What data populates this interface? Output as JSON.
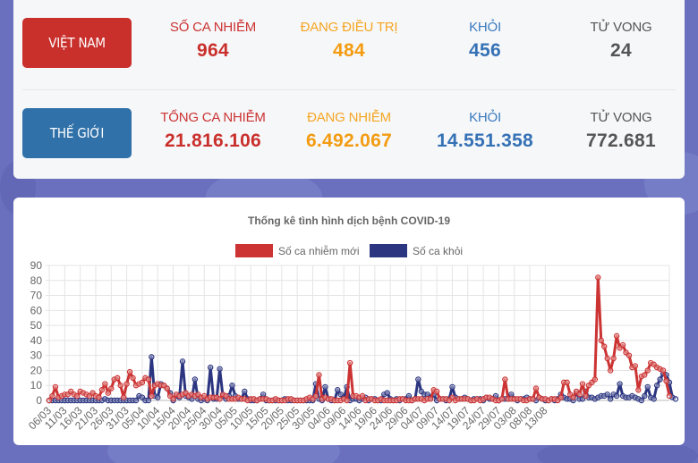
{
  "colors": {
    "vn_red": "#c9302c",
    "world_blue": "#3071a9",
    "infected": "#cc3333",
    "treating": "#f5a623",
    "recovered": "#3a7bbf",
    "deaths": "#555555",
    "series_new_cases": "#cc3333",
    "series_recovered": "#2b3580"
  },
  "vietnam": {
    "button_label": "VIỆT NAM",
    "stats": [
      {
        "label": "SỐ CA NHIỄM",
        "value": "964"
      },
      {
        "label": "ĐANG ĐIỀU TRỊ",
        "value": "484"
      },
      {
        "label": "KHỎI",
        "value": "456"
      },
      {
        "label": "TỬ VONG",
        "value": "24"
      }
    ]
  },
  "world": {
    "button_label": "THẾ GIỚI",
    "stats": [
      {
        "label": "TỔNG CA NHIỄM",
        "value": "21.816.106"
      },
      {
        "label": "ĐANG NHIỄM",
        "value": "6.492.067"
      },
      {
        "label": "KHỎI",
        "value": "14.551.358"
      },
      {
        "label": "TỬ VONG",
        "value": "772.681"
      }
    ]
  },
  "chart_data": {
    "type": "line",
    "title": "Thống kê tình hình dịch bệnh COVID-19",
    "legend_position": "top",
    "xlabel": "",
    "ylabel": "",
    "ylim": [
      0,
      90
    ],
    "yticks": [
      0,
      10,
      20,
      30,
      40,
      50,
      60,
      70,
      80,
      90
    ],
    "grid": true,
    "x_start": "06/03",
    "x_end": "15/08",
    "x_tick_labels": [
      "06/03",
      "11/03",
      "16/03",
      "21/03",
      "26/03",
      "31/03",
      "05/04",
      "10/04",
      "15/04",
      "20/04",
      "25/04",
      "30/04",
      "05/05",
      "10/05",
      "15/05",
      "20/05",
      "25/05",
      "30/05",
      "04/06",
      "09/06",
      "14/06",
      "19/06",
      "24/06",
      "29/06",
      "04/07",
      "09/07",
      "14/07",
      "19/07",
      "24/07",
      "29/07",
      "03/08",
      "08/08",
      "13/08"
    ],
    "series": [
      {
        "name": "Số ca nhiễm mới",
        "color": "#cc3333",
        "values": [
          0,
          3,
          9,
          2,
          3,
          4,
          4,
          6,
          4,
          3,
          6,
          5,
          4,
          3,
          5,
          3,
          2,
          7,
          11,
          5,
          8,
          14,
          15,
          10,
          2,
          11,
          19,
          15,
          10,
          11,
          12,
          15,
          14,
          3,
          10,
          11,
          10,
          10,
          8,
          3,
          1,
          4,
          3,
          4,
          5,
          3,
          4,
          3,
          4,
          2,
          3,
          1,
          2,
          2,
          2,
          1,
          4,
          3,
          1,
          1,
          1,
          2,
          1,
          1,
          0,
          1,
          1,
          0,
          1,
          1,
          1,
          0,
          0,
          1,
          0,
          0,
          0,
          1,
          1,
          0,
          0,
          0,
          0,
          1,
          2,
          1,
          3,
          17,
          1,
          2,
          1,
          1,
          0,
          0,
          0,
          1,
          0,
          25,
          3,
          3,
          2,
          3,
          0,
          1,
          1,
          0,
          0,
          1,
          0,
          0,
          0,
          0,
          0,
          1,
          1,
          0,
          0,
          0,
          1,
          1,
          1,
          0,
          1,
          1,
          7,
          6,
          1,
          1,
          1,
          0,
          2,
          0,
          1,
          1,
          1,
          1,
          0,
          0,
          1,
          0,
          1,
          2,
          2,
          1,
          0,
          0,
          1,
          14,
          1,
          1,
          1,
          1,
          1,
          0,
          0,
          1,
          1,
          8,
          2,
          1,
          1,
          0,
          1,
          1,
          0,
          2,
          12,
          12,
          4,
          2,
          6,
          4,
          11,
          3,
          10,
          12,
          14,
          82,
          40,
          36,
          28,
          20,
          28,
          43,
          35,
          37,
          32,
          30,
          22,
          23,
          7,
          16,
          17,
          20,
          25,
          24,
          22,
          21,
          20,
          13,
          3
        ]
      },
      {
        "name": "Số ca khỏi",
        "color": "#2b3580",
        "values": [
          0,
          0,
          0,
          0,
          0,
          0,
          0,
          0,
          0,
          0,
          0,
          0,
          0,
          0,
          0,
          0,
          0,
          0,
          1,
          0,
          0,
          0,
          0,
          0,
          0,
          0,
          0,
          0,
          0,
          3,
          2,
          0,
          0,
          29,
          3,
          2,
          11,
          10,
          8,
          5,
          0,
          3,
          2,
          26,
          3,
          2,
          1,
          14,
          1,
          0,
          1,
          0,
          22,
          1,
          1,
          21,
          3,
          1,
          3,
          10,
          3,
          1,
          1,
          6,
          1,
          0,
          0,
          0,
          1,
          4,
          0,
          0,
          0,
          0,
          0,
          0,
          1,
          0,
          0,
          0,
          0,
          0,
          0,
          0,
          0,
          0,
          11,
          1,
          0,
          9,
          1,
          0,
          0,
          7,
          4,
          1,
          9,
          0,
          1,
          1,
          0,
          1,
          2,
          0,
          1,
          1,
          0,
          0,
          4,
          5,
          1,
          0,
          1,
          0,
          1,
          1,
          3,
          0,
          1,
          14,
          6,
          4,
          4,
          2,
          4,
          0,
          1,
          1,
          0,
          1,
          9,
          2,
          1,
          1,
          2,
          1,
          0,
          1,
          1,
          1,
          0,
          2,
          1,
          1,
          3,
          0,
          1,
          1,
          1,
          4,
          1,
          0,
          1,
          1,
          2,
          1,
          1,
          0,
          2,
          1,
          0,
          0,
          1,
          0,
          1,
          4,
          2,
          1,
          1,
          0,
          5,
          1,
          1,
          6,
          2,
          2,
          1,
          2,
          3,
          3,
          4,
          1,
          4,
          3,
          11,
          3,
          2,
          2,
          3,
          2,
          1,
          0,
          3,
          9,
          2,
          1,
          10,
          14,
          18,
          17,
          12,
          2,
          1
        ]
      }
    ]
  }
}
